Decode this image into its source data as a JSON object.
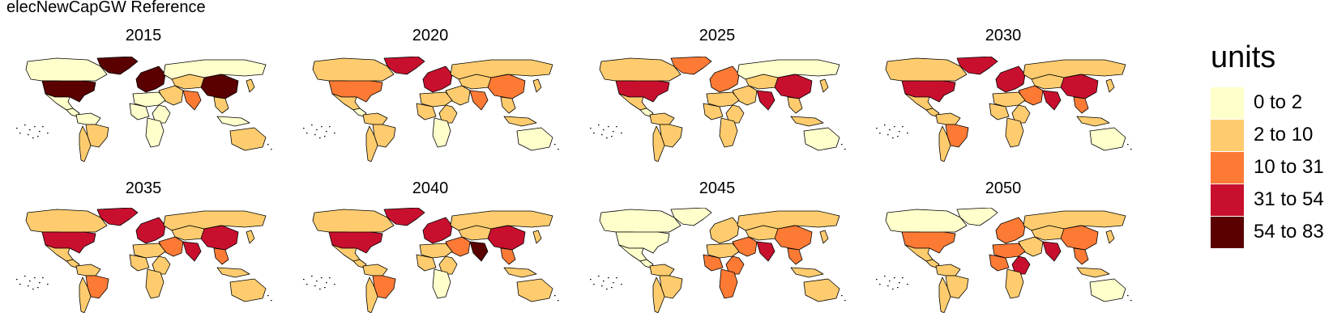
{
  "title": "elecNewCapGW Reference",
  "legend": {
    "title": "units",
    "classes": [
      {
        "label": "0 to 2",
        "color": "#ffffcc"
      },
      {
        "label": "2 to 10",
        "color": "#fecc6e"
      },
      {
        "label": "10 to 31",
        "color": "#fd7a35"
      },
      {
        "label": "31 to 54",
        "color": "#c8102e"
      },
      {
        "label": "54 to 83",
        "color": "#5a0000"
      }
    ]
  },
  "panels": [
    {
      "year": "2015",
      "regions": {
        "canada": 0,
        "usa": 4,
        "mexico": 0,
        "centralam": 0,
        "southam_n": 0,
        "brazil": 1,
        "southam_s": 1,
        "greenland": 4,
        "europe": 4,
        "russia": 0,
        "centralasia": 1,
        "middleeast": 1,
        "northafrica": 0,
        "africa_w": 0,
        "africa_e": 0,
        "africa_s": 0,
        "india": 2,
        "china": 4,
        "japan": 1,
        "seasia": 1,
        "indonesia": 0,
        "australia": 1
      }
    },
    {
      "year": "2020",
      "regions": {
        "canada": 1,
        "usa": 2,
        "mexico": 1,
        "centralam": 0,
        "southam_n": 1,
        "brazil": 1,
        "southam_s": 1,
        "greenland": 3,
        "europe": 3,
        "russia": 1,
        "centralasia": 1,
        "middleeast": 1,
        "northafrica": 1,
        "africa_w": 1,
        "africa_e": 1,
        "africa_s": 0,
        "india": 2,
        "china": 2,
        "japan": 1,
        "seasia": 1,
        "indonesia": 1,
        "australia": 0
      }
    },
    {
      "year": "2025",
      "regions": {
        "canada": 1,
        "usa": 3,
        "mexico": 1,
        "centralam": 0,
        "southam_n": 1,
        "brazil": 1,
        "southam_s": 1,
        "greenland": 2,
        "europe": 2,
        "russia": 0,
        "centralasia": 1,
        "middleeast": 1,
        "northafrica": 1,
        "africa_w": 1,
        "africa_e": 1,
        "africa_s": 1,
        "india": 3,
        "china": 3,
        "japan": 1,
        "seasia": 1,
        "indonesia": 1,
        "australia": 0
      }
    },
    {
      "year": "2030",
      "regions": {
        "canada": 1,
        "usa": 3,
        "mexico": 1,
        "centralam": 1,
        "southam_n": 1,
        "brazil": 2,
        "southam_s": 1,
        "greenland": 3,
        "europe": 3,
        "russia": 1,
        "centralasia": 1,
        "middleeast": 2,
        "northafrica": 1,
        "africa_w": 1,
        "africa_e": 1,
        "africa_s": 1,
        "india": 3,
        "china": 3,
        "japan": 1,
        "seasia": 2,
        "indonesia": 1,
        "australia": 0
      }
    },
    {
      "year": "2035",
      "regions": {
        "canada": 1,
        "usa": 3,
        "mexico": 1,
        "centralam": 1,
        "southam_n": 1,
        "brazil": 2,
        "southam_s": 1,
        "greenland": 3,
        "europe": 3,
        "russia": 1,
        "centralasia": 1,
        "middleeast": 2,
        "northafrica": 1,
        "africa_w": 1,
        "africa_e": 1,
        "africa_s": 1,
        "india": 3,
        "china": 3,
        "japan": 1,
        "seasia": 2,
        "indonesia": 1,
        "australia": 1
      }
    },
    {
      "year": "2040",
      "regions": {
        "canada": 1,
        "usa": 3,
        "mexico": 1,
        "centralam": 1,
        "southam_n": 1,
        "brazil": 2,
        "southam_s": 1,
        "greenland": 3,
        "europe": 3,
        "russia": 1,
        "centralasia": 1,
        "middleeast": 2,
        "northafrica": 1,
        "africa_w": 1,
        "africa_e": 1,
        "africa_s": 0,
        "india": 4,
        "china": 3,
        "japan": 1,
        "seasia": 2,
        "indonesia": 1,
        "australia": 1
      }
    },
    {
      "year": "2045",
      "regions": {
        "canada": 0,
        "usa": 0,
        "mexico": 0,
        "centralam": 0,
        "southam_n": 1,
        "brazil": 1,
        "southam_s": 1,
        "greenland": 0,
        "europe": 1,
        "russia": 1,
        "centralasia": 1,
        "middleeast": 2,
        "northafrica": 1,
        "africa_w": 2,
        "africa_e": 2,
        "africa_s": 2,
        "india": 3,
        "china": 2,
        "japan": 1,
        "seasia": 2,
        "indonesia": 1,
        "australia": 1
      }
    },
    {
      "year": "2050",
      "regions": {
        "canada": 0,
        "usa": 2,
        "mexico": 1,
        "centralam": 1,
        "southam_n": 1,
        "brazil": 1,
        "southam_s": 1,
        "greenland": 0,
        "europe": 2,
        "russia": 1,
        "centralasia": 1,
        "middleeast": 1,
        "northafrica": 2,
        "africa_w": 2,
        "africa_e": 3,
        "africa_s": 1,
        "india": 3,
        "china": 2,
        "japan": 1,
        "seasia": 2,
        "indonesia": 1,
        "australia": 0
      }
    }
  ]
}
